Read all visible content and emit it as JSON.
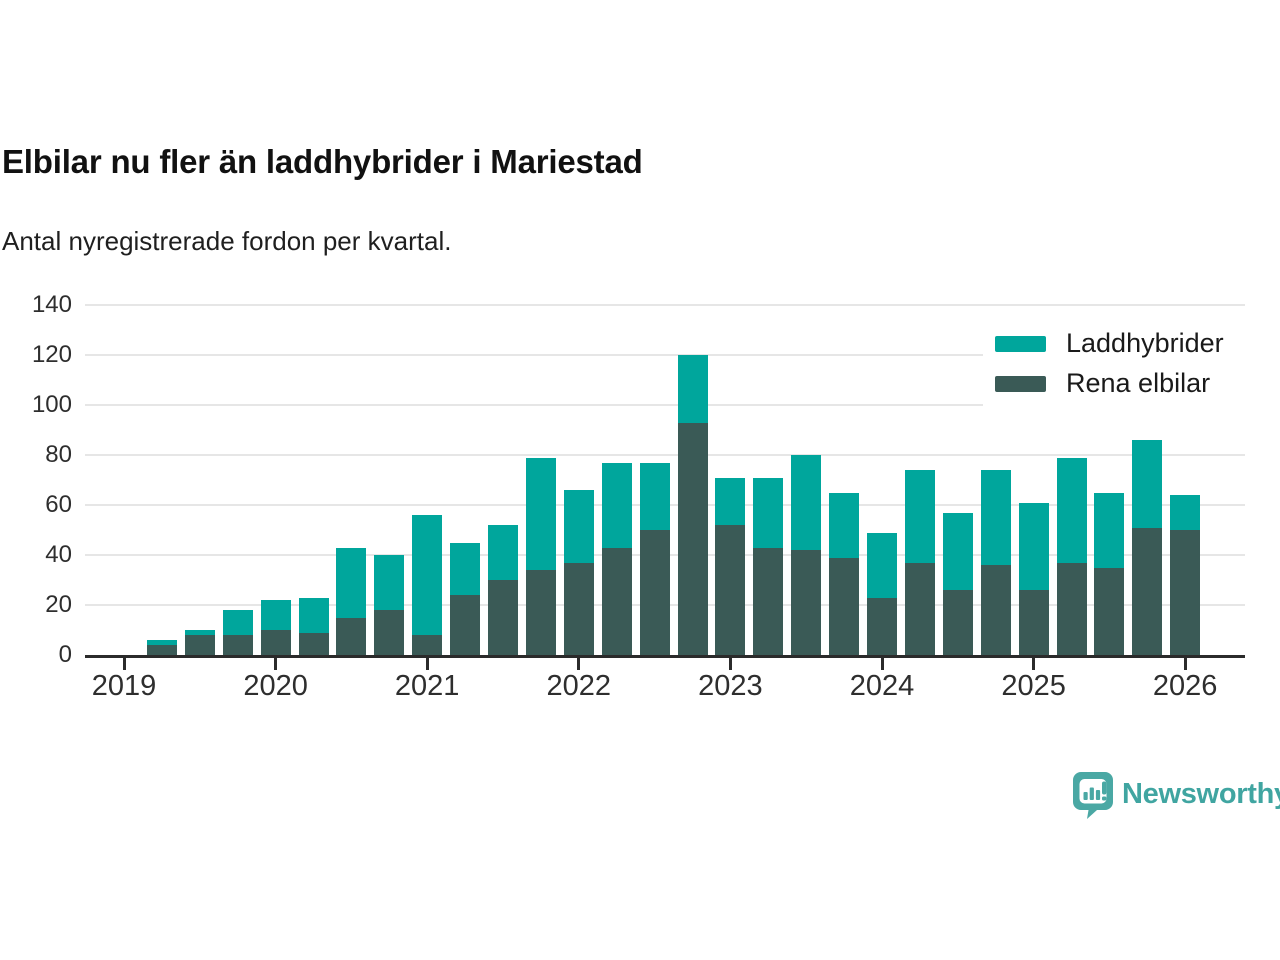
{
  "header": {
    "title": "Elbilar nu fler än laddhybrider i Mariestad",
    "subtitle": "Antal nyregistrerade fordon per kvartal."
  },
  "chart_data": {
    "type": "bar",
    "stacked": true,
    "title": "Elbilar nu fler än laddhybrider i Mariestad",
    "subtitle": "Antal nyregistrerade fordon per kvartal.",
    "xlabel": "",
    "ylabel": "",
    "ylim": [
      0,
      140
    ],
    "y_ticks": [
      0,
      20,
      40,
      60,
      80,
      100,
      120,
      140
    ],
    "x_tick_labels": [
      "2019",
      "2020",
      "2021",
      "2022",
      "2023",
      "2024",
      "2025",
      "2026"
    ],
    "grid": "horizontal",
    "legend_position": "top-right",
    "categories": [
      "2019 Q2",
      "2019 Q3",
      "2019 Q4",
      "2020 Q1",
      "2020 Q2",
      "2020 Q3",
      "2020 Q4",
      "2021 Q1",
      "2021 Q2",
      "2021 Q3",
      "2021 Q4",
      "2022 Q1",
      "2022 Q2",
      "2022 Q3",
      "2022 Q4",
      "2023 Q1",
      "2023 Q2",
      "2023 Q3",
      "2023 Q4",
      "2024 Q1",
      "2024 Q2",
      "2024 Q3",
      "2024 Q4",
      "2025 Q1",
      "2025 Q2",
      "2025 Q3",
      "2025 Q4",
      "2026 Q1"
    ],
    "stack_order_bottom_to_top": [
      "Rena elbilar",
      "Laddhybrider"
    ],
    "series": [
      {
        "name": "Laddhybrider",
        "color": "#00a69c",
        "values": [
          2,
          2,
          10,
          12,
          14,
          28,
          22,
          48,
          21,
          22,
          45,
          29,
          34,
          27,
          27,
          19,
          28,
          38,
          26,
          26,
          37,
          31,
          38,
          35,
          42,
          30,
          35,
          14
        ]
      },
      {
        "name": "Rena elbilar",
        "color": "#3a5a56",
        "values": [
          4,
          8,
          8,
          10,
          9,
          15,
          18,
          8,
          24,
          30,
          34,
          37,
          43,
          50,
          93,
          52,
          43,
          42,
          39,
          23,
          37,
          26,
          36,
          26,
          37,
          35,
          51,
          50
        ]
      }
    ],
    "totals": [
      6,
      10,
      18,
      22,
      23,
      43,
      40,
      56,
      45,
      52,
      79,
      66,
      77,
      77,
      120,
      71,
      71,
      80,
      65,
      49,
      74,
      57,
      74,
      61,
      79,
      65,
      86,
      64
    ]
  },
  "colors": {
    "laddhybrider": "#00a69c",
    "rena_elbilar": "#3a5a56",
    "gridline": "#e6e6e6",
    "axis": "#2b2b2b",
    "brand_teal": "#40a5a1"
  },
  "brand": {
    "name": "Newsworthy",
    "icon": "bar-chart-speech-bubble-icon"
  }
}
